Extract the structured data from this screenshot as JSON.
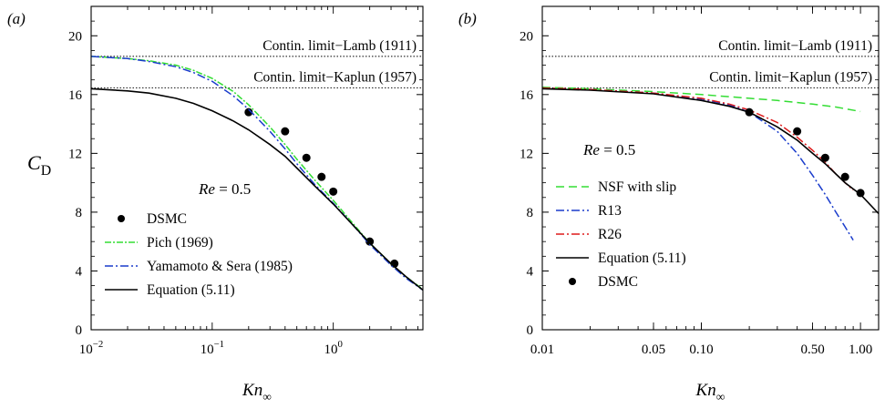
{
  "chart_data": [
    {
      "type": "line",
      "panel_label": "(a)",
      "xlabel": "Kn",
      "xlabel_sub": "∞",
      "ylabel": "C",
      "ylabel_sub": "D",
      "xscale": "log",
      "xlim": [
        0.01,
        5.5
      ],
      "ylim": [
        0,
        22
      ],
      "xticks": [
        {
          "value": 0.01,
          "base": "10",
          "exp": "−2"
        },
        {
          "value": 0.1,
          "base": "10",
          "exp": "−1"
        },
        {
          "value": 1,
          "base": "10",
          "exp": "0"
        }
      ],
      "yticks": [
        0,
        4,
        8,
        12,
        16,
        20
      ],
      "annotation": {
        "italic": "Re",
        "text": " = 0.5"
      },
      "reference_lines": [
        {
          "name": "Contin. limit−Lamb (1911)",
          "y": 18.6,
          "style": "dotted"
        },
        {
          "name": "Contin. limit−Kaplun (1957)",
          "y": 16.45,
          "style": "dotted"
        }
      ],
      "series": [
        {
          "name": "DSMC",
          "kind": "points",
          "color": "#000000",
          "x": [
            0.2,
            0.4,
            0.6,
            0.8,
            1.0,
            2.0,
            3.2
          ],
          "y": [
            14.8,
            13.5,
            11.7,
            10.4,
            9.4,
            6.0,
            4.5
          ]
        },
        {
          "name": "Pich (1969)",
          "kind": "line",
          "color": "#33dd33",
          "dash": "7 2 2 2",
          "x": [
            0.01,
            0.02,
            0.03,
            0.05,
            0.07,
            0.1,
            0.15,
            0.2,
            0.3,
            0.4,
            0.5,
            0.7,
            1.0,
            1.5,
            2.0,
            3.0,
            4.0,
            5.5
          ],
          "y": [
            18.6,
            18.45,
            18.3,
            18.0,
            17.65,
            17.1,
            16.2,
            15.3,
            13.8,
            12.6,
            11.6,
            10.2,
            8.8,
            7.1,
            5.9,
            4.5,
            3.6,
            2.75
          ]
        },
        {
          "name": "Yamamoto & Sera (1985)",
          "kind": "line",
          "color": "#1a3ccc",
          "dash": "9 3 2 3",
          "x": [
            0.01,
            0.02,
            0.03,
            0.05,
            0.07,
            0.1,
            0.15,
            0.2,
            0.3,
            0.4,
            0.5,
            0.7,
            1.0,
            1.5,
            2.0,
            3.0,
            4.0,
            5.5
          ],
          "y": [
            18.6,
            18.45,
            18.25,
            17.9,
            17.5,
            16.9,
            15.9,
            15.0,
            13.5,
            12.3,
            11.3,
            9.9,
            8.6,
            7.0,
            5.8,
            4.4,
            3.5,
            2.7
          ]
        },
        {
          "name": "Equation (5.11)",
          "kind": "line",
          "color": "#000000",
          "dash": "",
          "x": [
            0.01,
            0.02,
            0.03,
            0.05,
            0.07,
            0.1,
            0.15,
            0.2,
            0.3,
            0.4,
            0.5,
            0.7,
            1.0,
            1.5,
            2.0,
            3.0,
            4.0,
            5.5
          ],
          "y": [
            16.4,
            16.25,
            16.1,
            15.75,
            15.4,
            14.9,
            14.2,
            13.6,
            12.6,
            11.8,
            11.0,
            9.8,
            8.55,
            7.0,
            5.9,
            4.5,
            3.6,
            2.7
          ]
        }
      ]
    },
    {
      "type": "line",
      "panel_label": "(b)",
      "xlabel": "Kn",
      "xlabel_sub": "∞",
      "ylabel": "",
      "xscale": "log",
      "xlim": [
        0.01,
        1.3
      ],
      "ylim": [
        0,
        22
      ],
      "xticks": [
        {
          "value": 0.01,
          "label": "0.01"
        },
        {
          "value": 0.05,
          "label": "0.05"
        },
        {
          "value": 0.1,
          "label": "0.10"
        },
        {
          "value": 0.5,
          "label": "0.50"
        },
        {
          "value": 1.0,
          "label": "1.00"
        }
      ],
      "yticks": [
        0,
        4,
        8,
        12,
        16,
        20
      ],
      "annotation": {
        "italic": "Re",
        "text": " = 0.5"
      },
      "reference_lines": [
        {
          "name": "Contin. limit−Lamb (1911)",
          "y": 18.6,
          "style": "dotted"
        },
        {
          "name": "Contin. limit−Kaplun (1957)",
          "y": 16.45,
          "style": "dotted"
        }
      ],
      "series": [
        {
          "name": "NSF with slip",
          "kind": "line",
          "color": "#33dd33",
          "dash": "9 5",
          "x": [
            0.01,
            0.02,
            0.05,
            0.1,
            0.2,
            0.3,
            0.5,
            0.7,
            1.0
          ],
          "y": [
            16.5,
            16.4,
            16.2,
            16.0,
            15.75,
            15.6,
            15.35,
            15.15,
            14.85
          ]
        },
        {
          "name": "R13",
          "kind": "line",
          "color": "#1a3ccc",
          "dash": "9 3 2 3",
          "x": [
            0.01,
            0.02,
            0.05,
            0.1,
            0.15,
            0.2,
            0.3,
            0.4,
            0.5,
            0.6,
            0.7,
            0.8,
            0.9
          ],
          "y": [
            16.45,
            16.35,
            16.1,
            15.7,
            15.3,
            14.8,
            13.5,
            12.0,
            10.5,
            9.2,
            8.0,
            7.0,
            6.1
          ]
        },
        {
          "name": "R26",
          "kind": "line",
          "color": "#dd1a1a",
          "dash": "9 3 2 3",
          "x": [
            0.01,
            0.02,
            0.05,
            0.1,
            0.15,
            0.2,
            0.3,
            0.4,
            0.5,
            0.6,
            0.7,
            0.8,
            0.9
          ],
          "y": [
            16.45,
            16.35,
            16.1,
            15.75,
            15.35,
            14.95,
            14.1,
            13.1,
            12.2,
            11.4,
            10.6,
            10.0,
            9.5
          ]
        },
        {
          "name": "Equation (5.11)",
          "kind": "line",
          "color": "#000000",
          "dash": "",
          "x": [
            0.01,
            0.02,
            0.05,
            0.1,
            0.15,
            0.2,
            0.3,
            0.4,
            0.5,
            0.6,
            0.7,
            0.8,
            1.0,
            1.3
          ],
          "y": [
            16.4,
            16.3,
            16.05,
            15.6,
            15.2,
            14.8,
            13.8,
            12.9,
            12.0,
            11.3,
            10.6,
            10.0,
            9.2,
            7.9
          ]
        },
        {
          "name": "DSMC",
          "kind": "points",
          "color": "#000000",
          "x": [
            0.2,
            0.4,
            0.6,
            0.8,
            1.0
          ],
          "y": [
            14.8,
            13.5,
            11.7,
            10.4,
            9.3
          ]
        }
      ]
    }
  ]
}
